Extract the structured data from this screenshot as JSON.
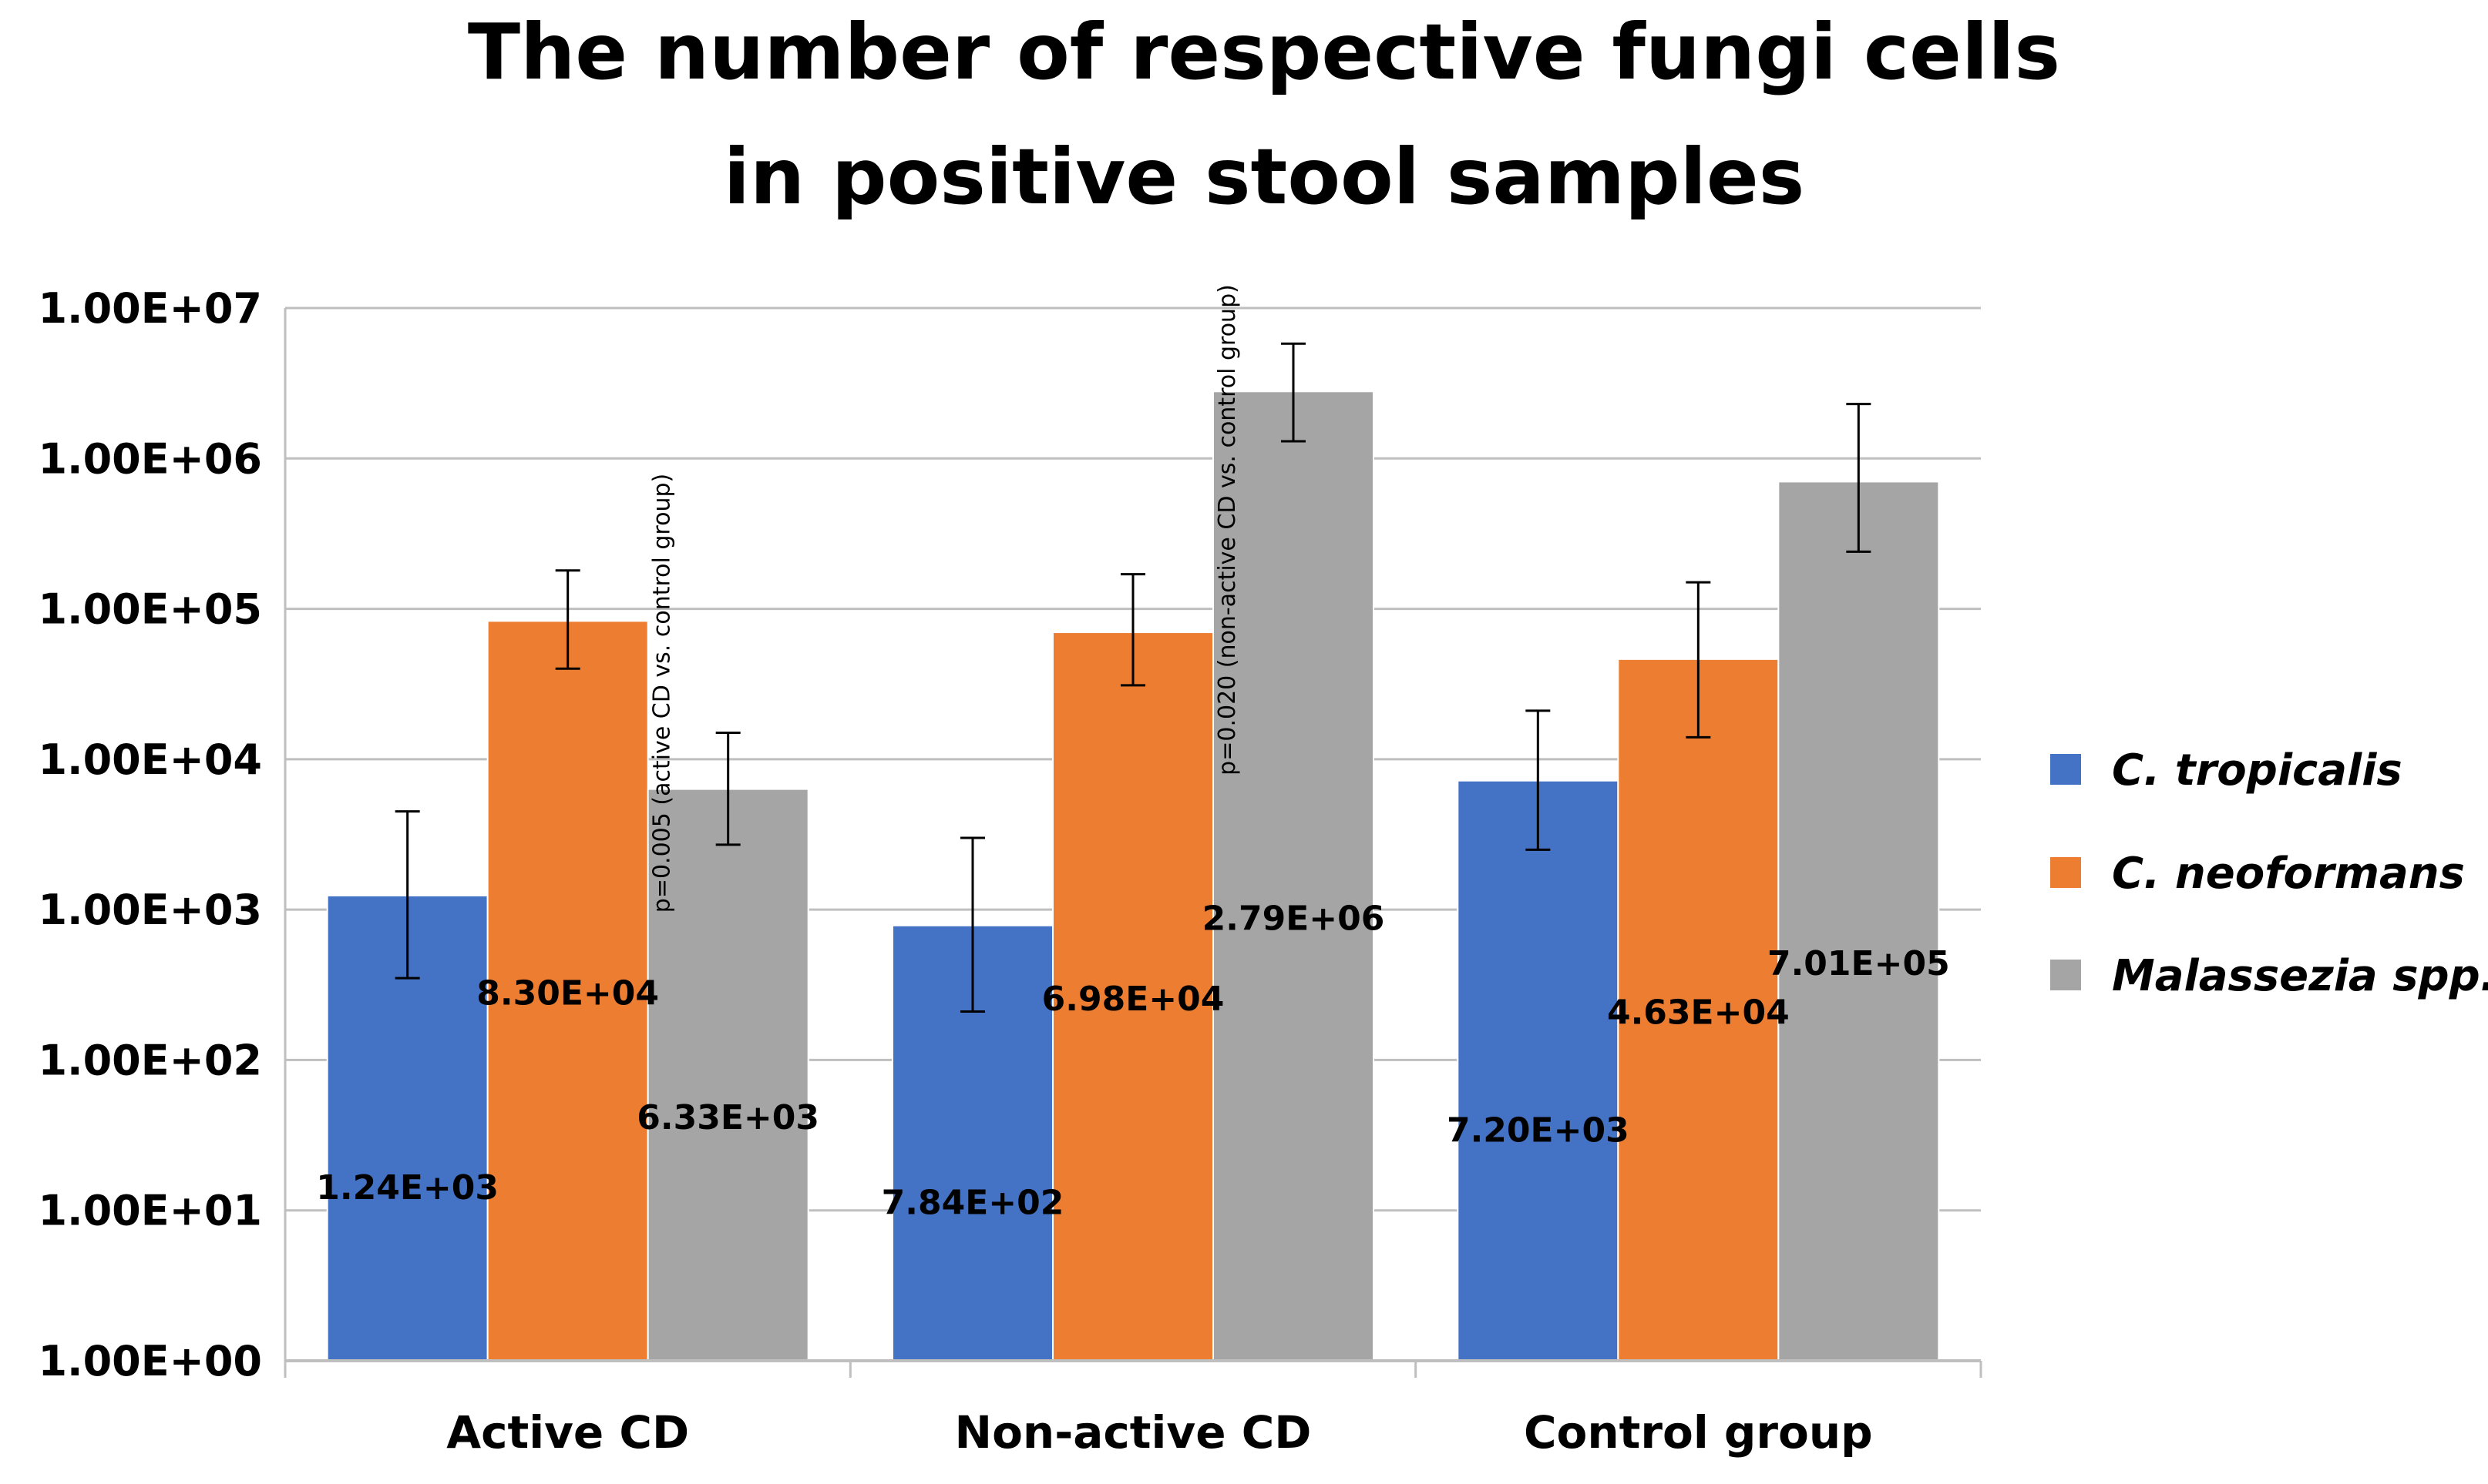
{
  "chart_data": {
    "type": "bar",
    "title": [
      "The number of respective fungi cells",
      "in positive stool samples"
    ],
    "categories": [
      "Active CD",
      "Non-active CD",
      "Control group"
    ],
    "yscale": "log",
    "ylim": [
      1,
      10000000
    ],
    "ytick_labels": [
      "1.00E+00",
      "1.00E+01",
      "1.00E+02",
      "1.00E+03",
      "1.00E+04",
      "1.00E+05",
      "1.00E+06",
      "1.00E+07"
    ],
    "legend_position": "right",
    "series": [
      {
        "name": "C. tropicalis",
        "color": "#4472C4",
        "values": [
          1240,
          784,
          7200
        ],
        "value_labels": [
          "1.24E+03",
          "7.84E+02",
          "7.20E+03"
        ],
        "err_low": [
          350,
          210,
          2500
        ],
        "err_high": [
          4500,
          3000,
          21000
        ]
      },
      {
        "name": "C. neoformans",
        "color": "#ED7D31",
        "values": [
          83000,
          69800,
          46300
        ],
        "value_labels": [
          "8.30E+04",
          "6.98E+04",
          "4.63E+04"
        ],
        "err_low": [
          40000,
          31000,
          14000
        ],
        "err_high": [
          180000,
          170000,
          150000
        ]
      },
      {
        "name": "Malassezia spp.",
        "color": "#A5A5A5",
        "values": [
          6330,
          2790000,
          701000
        ],
        "value_labels": [
          "6.33E+03",
          "2.79E+06",
          "7.01E+05"
        ],
        "err_low": [
          2700,
          1300000,
          240000
        ],
        "err_high": [
          15000,
          5800000,
          2300000
        ]
      }
    ],
    "annotations": [
      {
        "text": "p=0.005 (active CD vs. control group)",
        "category": 0,
        "series": 2
      },
      {
        "text": "p=0.020 (non-active CD vs. control group)",
        "category": 1,
        "series": 2
      }
    ]
  }
}
